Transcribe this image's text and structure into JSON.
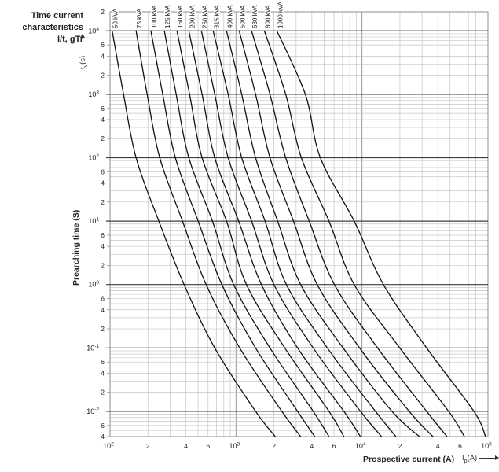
{
  "page": {
    "title_lines": [
      "Time current",
      "characteristics",
      "I/t, gTr"
    ]
  },
  "axes": {
    "y_title": "Prearching time (S)",
    "y_symbol": {
      "base": "t",
      "sub": "v",
      "unit": "(s)"
    },
    "x_title": "Prospective current (A)",
    "x_symbol": {
      "base": "I",
      "sub": "p",
      "unit": "(A)"
    },
    "tick_base": "10",
    "x_exponents": [
      "2",
      "3",
      "4",
      "5"
    ],
    "y_exponents": [
      "4",
      "3",
      "2",
      "1",
      "0",
      "-1",
      "-2"
    ],
    "minor_tick_labels": [
      "2",
      "4",
      "6"
    ]
  },
  "colors": {
    "curve": "#111111",
    "grid_minor": "#c6c6c6",
    "grid_decade_v": "#9a9a9a",
    "decade_line_h": "#3d3d3d",
    "frame": "#8d8d8d",
    "text": "#222222"
  },
  "chart_data": {
    "type": "line",
    "title": "Time current characteristics I/t, gTr",
    "xlabel": "Prospective current (A)",
    "ylabel": "Prearching time (S)",
    "x_scale": "log",
    "y_scale": "log",
    "xlim": [
      100,
      100000
    ],
    "ylim": [
      0.004,
      20000
    ],
    "grid": true,
    "legend_position": "labels above curves, rotated 90deg",
    "sample_times_s": [
      10000,
      1000,
      100,
      10,
      1,
      0.1,
      0.01,
      0.004
    ],
    "series": [
      {
        "name": "50 kVA",
        "currents_A": [
          104,
          128,
          161,
          244,
          387,
          678,
          1430,
          2050
        ]
      },
      {
        "name": "75 kVA",
        "currents_A": [
          161,
          197,
          248,
          376,
          579,
          1070,
          2310,
          3260
        ]
      },
      {
        "name": "100 kVA",
        "currents_A": [
          211,
          262,
          330,
          501,
          772,
          1430,
          3080,
          4220
        ]
      },
      {
        "name": "125 kVA",
        "currents_A": [
          270,
          335,
          422,
          650,
          958,
          1860,
          4100,
          5470
        ]
      },
      {
        "name": "160 kVA",
        "currents_A": [
          340,
          428,
          538,
          841,
          1210,
          2440,
          5470,
          7180
        ]
      },
      {
        "name": "200 kVA",
        "currents_A": [
          422,
          538,
          678,
          1050,
          1590,
          3080,
          7180,
          9720
        ]
      },
      {
        "name": "250 kVA",
        "currents_A": [
          531,
          678,
          866,
          1330,
          2000,
          4100,
          9720,
          14300
        ]
      },
      {
        "name": "315 kVA",
        "currents_A": [
          659,
          866,
          1110,
          1700,
          2510,
          5310,
          12800,
          18600
        ]
      },
      {
        "name": "400 kVA",
        "currents_A": [
          841,
          1110,
          1430,
          2140,
          3260,
          7080,
          17300,
          28600
        ]
      },
      {
        "name": "500 kVA",
        "currents_A": [
          1060,
          1430,
          1860,
          2860,
          4410,
          9570,
          23700,
          36600
        ]
      },
      {
        "name": "630 kVA",
        "currents_A": [
          1330,
          1860,
          2480,
          3810,
          6040,
          13300,
          32600,
          47300
        ]
      },
      {
        "name": "800 kVA",
        "currents_A": [
          1680,
          2480,
          3300,
          5470,
          8670,
          19950,
          48700,
          65000
        ]
      },
      {
        "name": "1000 kVA",
        "currents_A": [
          2110,
          3550,
          4670,
          8670,
          14800,
          32600,
          77300,
          95700
        ]
      }
    ]
  }
}
